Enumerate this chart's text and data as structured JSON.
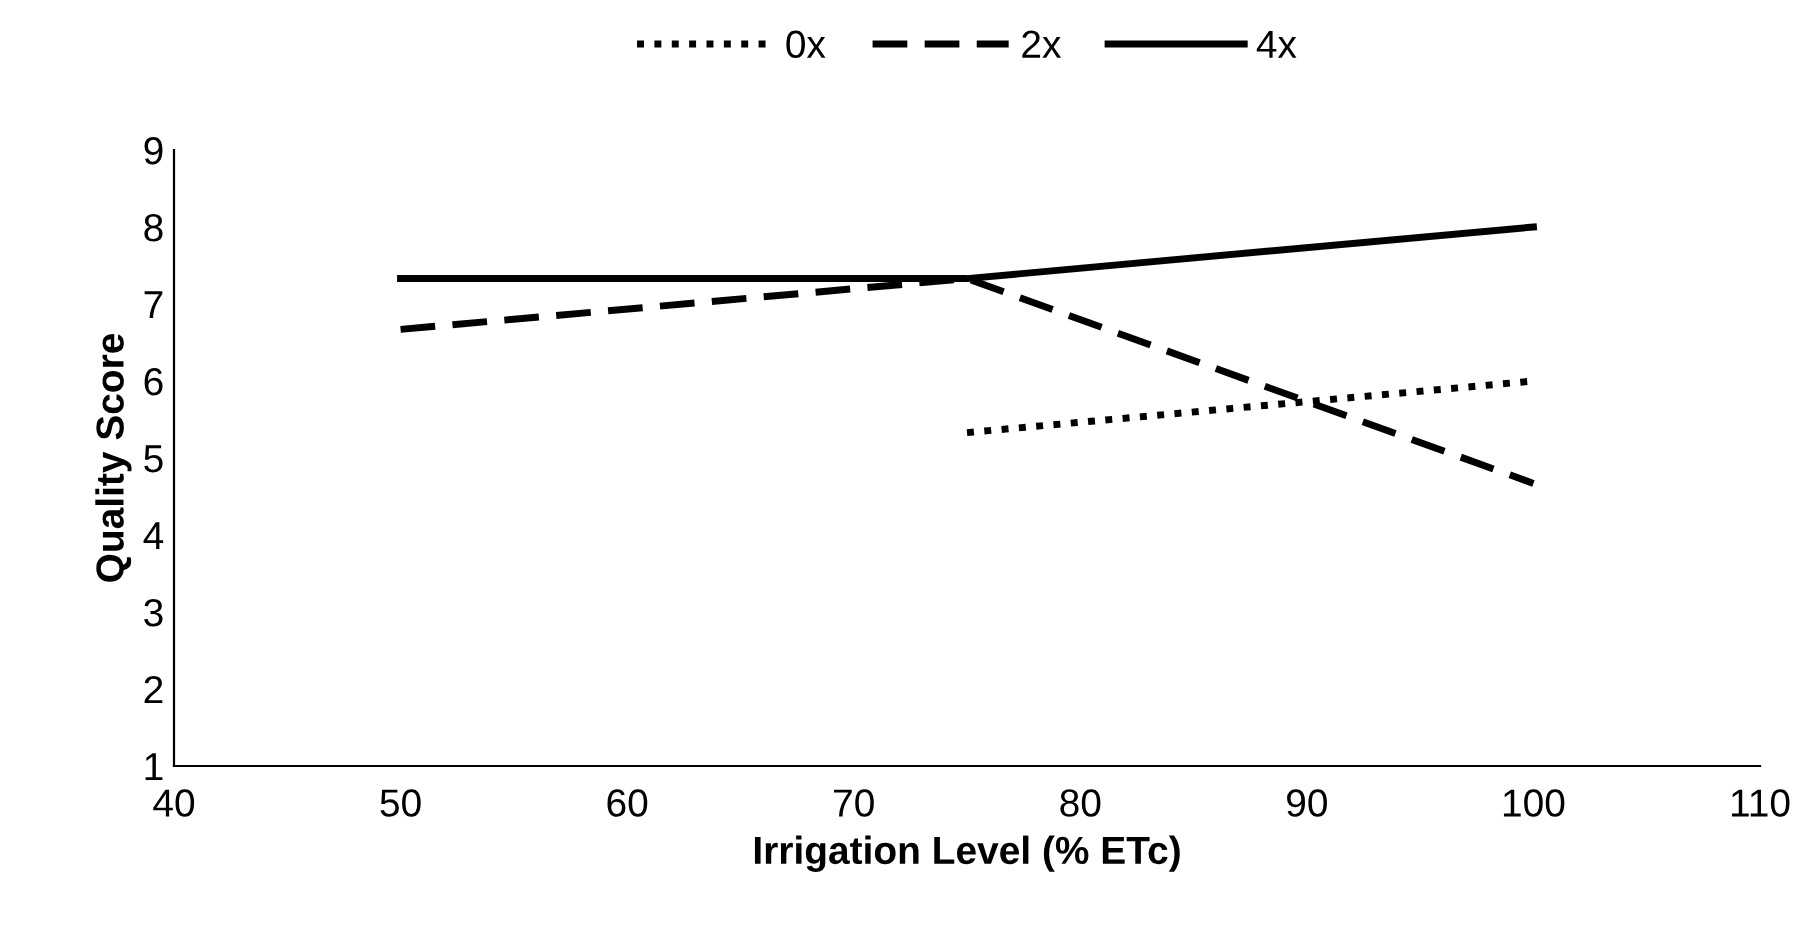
{
  "chart_data": {
    "type": "line",
    "xlabel": "Irrigation Level (% ETc)",
    "ylabel": "Quality Score",
    "xlim": [
      40,
      110
    ],
    "xticks": [
      40,
      50,
      60,
      70,
      80,
      90,
      100,
      110
    ],
    "ylim": [
      1,
      9
    ],
    "yticks": [
      1,
      2,
      3,
      4,
      5,
      6,
      7,
      8,
      9
    ],
    "grid": false,
    "legend": "top",
    "marker": "none",
    "series": [
      {
        "name": "0x",
        "color": "#000000",
        "line_style": "dotted",
        "x": [
          75,
          100
        ],
        "values": [
          5.33,
          6
        ]
      },
      {
        "name": "2x",
        "color": "#000000",
        "line_style": "dashed",
        "x": [
          50,
          75,
          100
        ],
        "values": [
          6.67,
          7.33,
          4.67
        ]
      },
      {
        "name": "4x",
        "color": "#000000",
        "line_style": "solid",
        "x": [
          50,
          75,
          100
        ],
        "values": [
          7.33,
          7.33,
          8
        ]
      }
    ]
  }
}
